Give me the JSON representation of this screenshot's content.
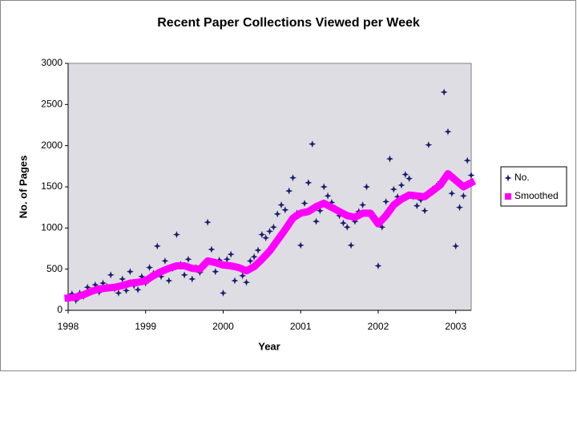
{
  "chart_data": {
    "type": "scatter",
    "title": "Recent Paper Collections Viewed per Week",
    "x_label": "Year",
    "y_label": "No. of Pages",
    "xlim": [
      1998,
      2003.2
    ],
    "xticks": [
      1998,
      1999,
      2000,
      2001,
      2002,
      2003
    ],
    "ylim": [
      0,
      3000
    ],
    "yticks": [
      0,
      500,
      1000,
      1500,
      2000,
      2500,
      3000
    ],
    "grid": false,
    "legend": "right",
    "series": [
      {
        "name": "No.",
        "color": "#1c1c6e",
        "marker": "star",
        "x": [
          1998.0,
          1998.05,
          1998.1,
          1998.15,
          1998.2,
          1998.25,
          1998.3,
          1998.35,
          1998.4,
          1998.45,
          1998.5,
          1998.55,
          1998.6,
          1998.65,
          1998.7,
          1998.75,
          1998.8,
          1998.85,
          1998.9,
          1998.95,
          1999.0,
          1999.05,
          1999.1,
          1999.15,
          1999.2,
          1999.25,
          1999.3,
          1999.35,
          1999.4,
          1999.45,
          1999.5,
          1999.55,
          1999.6,
          1999.65,
          1999.7,
          1999.75,
          1999.8,
          1999.85,
          1999.9,
          1999.95,
          2000.0,
          2000.05,
          2000.1,
          2000.15,
          2000.2,
          2000.25,
          2000.3,
          2000.35,
          2000.4,
          2000.45,
          2000.5,
          2000.55,
          2000.6,
          2000.65,
          2000.7,
          2000.75,
          2000.8,
          2000.85,
          2000.9,
          2000.95,
          2001.0,
          2001.05,
          2001.1,
          2001.15,
          2001.2,
          2001.25,
          2001.3,
          2001.35,
          2001.4,
          2001.45,
          2001.5,
          2001.55,
          2001.6,
          2001.65,
          2001.7,
          2001.75,
          2001.8,
          2001.85,
          2001.9,
          2001.95,
          2002.0,
          2002.05,
          2002.1,
          2002.15,
          2002.2,
          2002.25,
          2002.3,
          2002.35,
          2002.4,
          2002.45,
          2002.5,
          2002.55,
          2002.6,
          2002.65,
          2002.7,
          2002.75,
          2002.8,
          2002.85,
          2002.9,
          2002.95,
          2003.0,
          2003.05,
          2003.1,
          2003.15,
          2003.2
        ],
        "values": [
          150,
          200,
          120,
          210,
          170,
          280,
          240,
          310,
          220,
          330,
          290,
          430,
          260,
          210,
          380,
          240,
          470,
          300,
          250,
          410,
          330,
          520,
          450,
          780,
          410,
          600,
          360,
          510,
          920,
          560,
          430,
          620,
          380,
          520,
          460,
          570,
          1070,
          740,
          470,
          610,
          210,
          620,
          680,
          360,
          520,
          420,
          340,
          600,
          650,
          730,
          920,
          880,
          960,
          1010,
          1170,
          1280,
          1220,
          1450,
          1610,
          1180,
          790,
          1300,
          1550,
          2020,
          1080,
          1210,
          1500,
          1390,
          1310,
          1240,
          1150,
          1060,
          1010,
          790,
          1080,
          1200,
          1280,
          1500,
          1170,
          1130,
          540,
          1010,
          1320,
          1840,
          1470,
          1380,
          1520,
          1650,
          1600,
          1380,
          1270,
          1340,
          1210,
          2010,
          1470,
          1510,
          1560,
          2650,
          2170,
          1420,
          780,
          1250,
          1390,
          1820,
          1640
        ]
      },
      {
        "name": "Smoothed",
        "color": "#ff00ff",
        "marker": "square",
        "x": [
          1998.0,
          1998.1,
          1998.2,
          1998.3,
          1998.4,
          1998.5,
          1998.6,
          1998.7,
          1998.8,
          1998.9,
          1999.0,
          1999.1,
          1999.2,
          1999.3,
          1999.4,
          1999.5,
          1999.6,
          1999.7,
          1999.8,
          1999.9,
          2000.0,
          2000.1,
          2000.2,
          2000.3,
          2000.4,
          2000.5,
          2000.6,
          2000.7,
          2000.8,
          2000.9,
          2001.0,
          2001.1,
          2001.2,
          2001.3,
          2001.4,
          2001.5,
          2001.6,
          2001.7,
          2001.8,
          2001.9,
          2002.0,
          2002.1,
          2002.2,
          2002.3,
          2002.4,
          2002.5,
          2002.6,
          2002.7,
          2002.8,
          2002.9,
          2003.0,
          2003.1,
          2003.2
        ],
        "values": [
          150,
          160,
          190,
          230,
          260,
          270,
          280,
          300,
          330,
          340,
          360,
          420,
          470,
          510,
          540,
          540,
          510,
          500,
          600,
          580,
          550,
          540,
          520,
          480,
          530,
          620,
          720,
          850,
          980,
          1120,
          1180,
          1200,
          1260,
          1300,
          1250,
          1200,
          1150,
          1130,
          1180,
          1180,
          1050,
          1150,
          1280,
          1350,
          1400,
          1390,
          1380,
          1450,
          1520,
          1660,
          1580,
          1500,
          1550
        ]
      }
    ]
  }
}
